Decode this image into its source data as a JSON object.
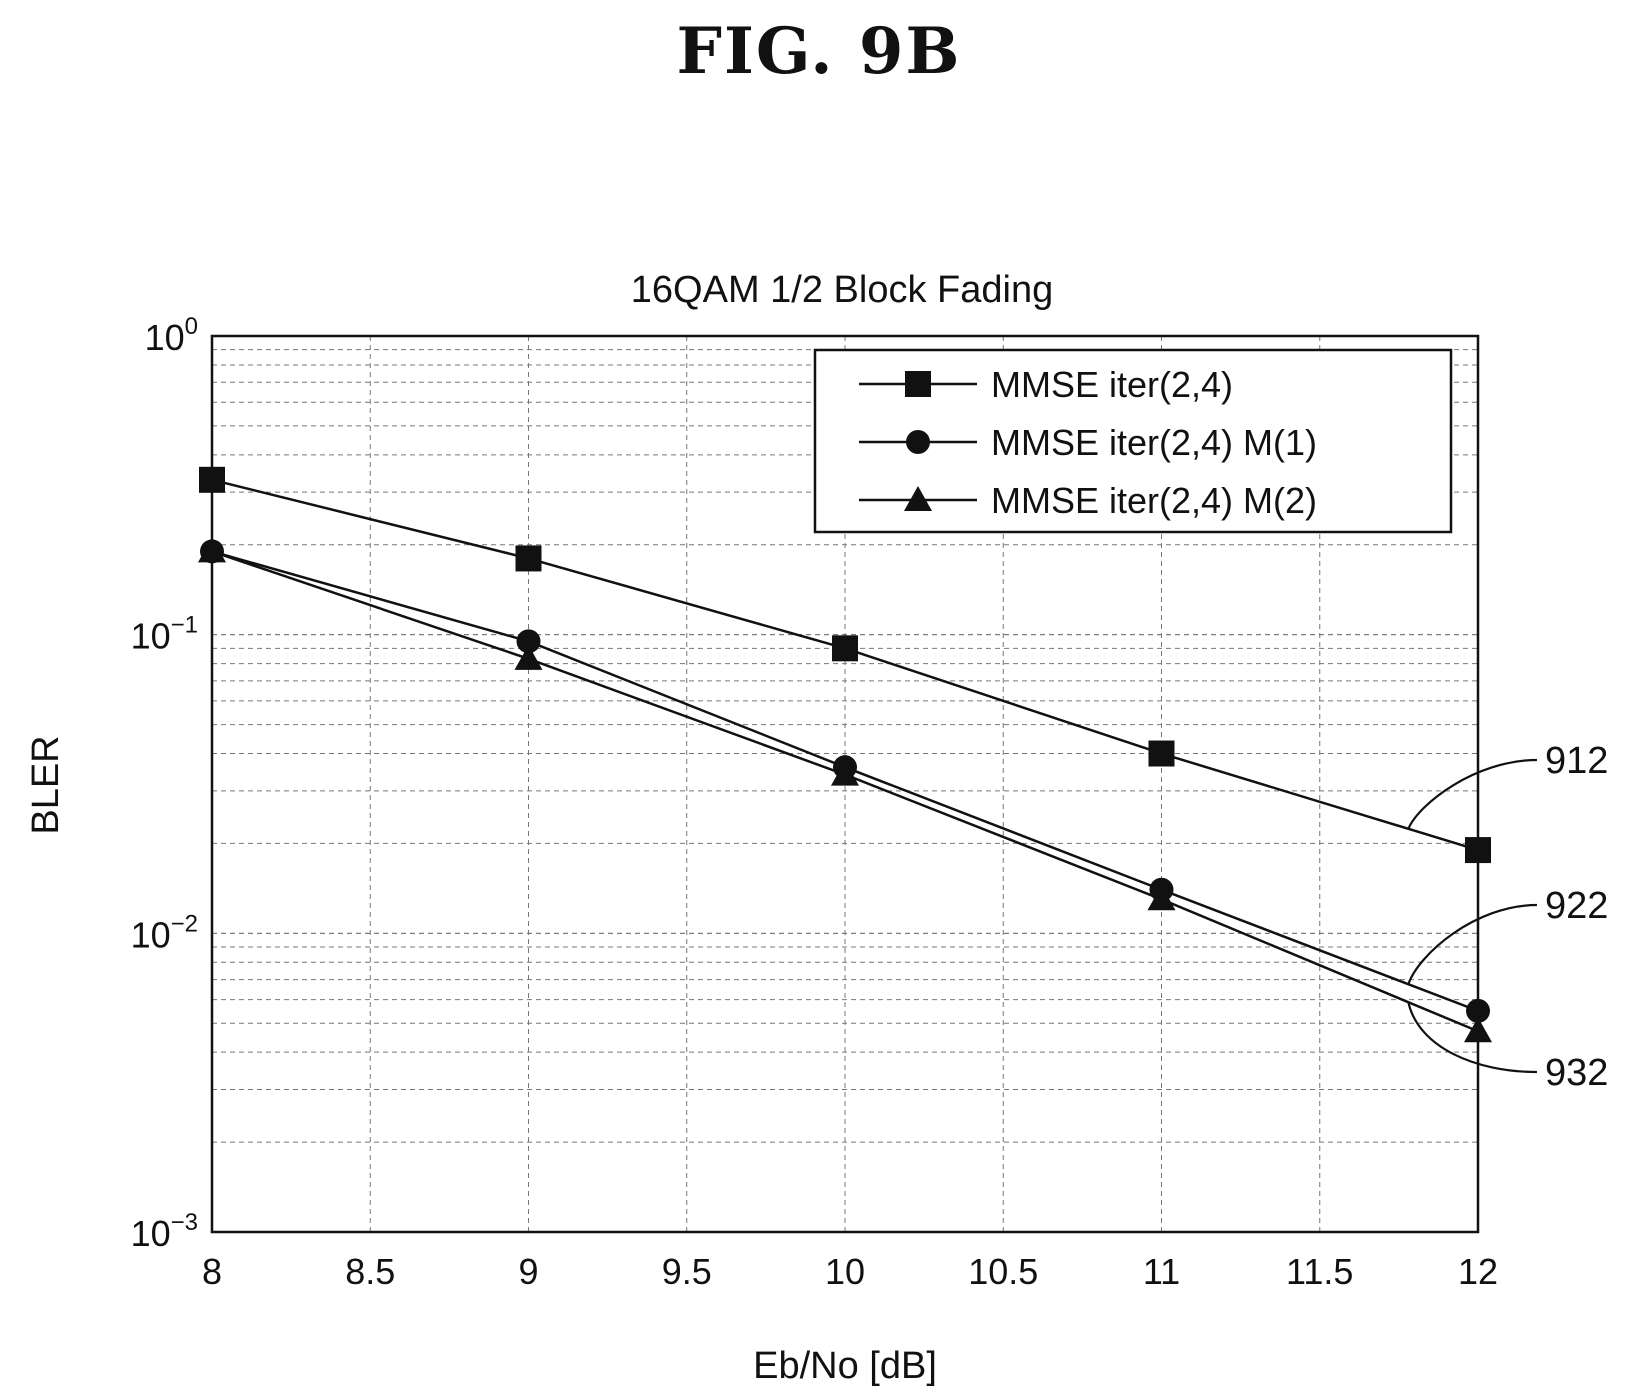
{
  "figure_label": "FIG. 9B",
  "chart_data": {
    "type": "line",
    "title": "16QAM 1/2 Block Fading",
    "xlabel": "Eb/No [dB]",
    "ylabel": "BLER",
    "x": [
      8,
      9,
      10,
      11,
      12
    ],
    "xlim": [
      8,
      12
    ],
    "xticks": [
      "8",
      "8.5",
      "9",
      "9.5",
      "10",
      "10.5",
      "11",
      "11.5",
      "12"
    ],
    "ylim": [
      0.001,
      1
    ],
    "yscale": "log",
    "yticks": [
      {
        "base": "10",
        "exp": "0"
      },
      {
        "base": "10",
        "exp": "−1"
      },
      {
        "base": "10",
        "exp": "−2"
      },
      {
        "base": "10",
        "exp": "−3"
      }
    ],
    "grid": true,
    "legend_position": "top-right",
    "series": [
      {
        "name": "MMSE iter(2,4)",
        "marker": "square",
        "values": [
          0.33,
          0.18,
          0.09,
          0.04,
          0.019
        ]
      },
      {
        "name": "MMSE iter(2,4) M(1)",
        "marker": "circle",
        "values": [
          0.19,
          0.095,
          0.036,
          0.014,
          0.0055
        ]
      },
      {
        "name": "MMSE iter(2,4) M(2)",
        "marker": "triangle",
        "values": [
          0.19,
          0.083,
          0.034,
          0.013,
          0.0047
        ]
      }
    ],
    "annotations": [
      {
        "label": "912",
        "series": 0
      },
      {
        "label": "922",
        "series": 1
      },
      {
        "label": "932",
        "series": 2
      }
    ]
  }
}
